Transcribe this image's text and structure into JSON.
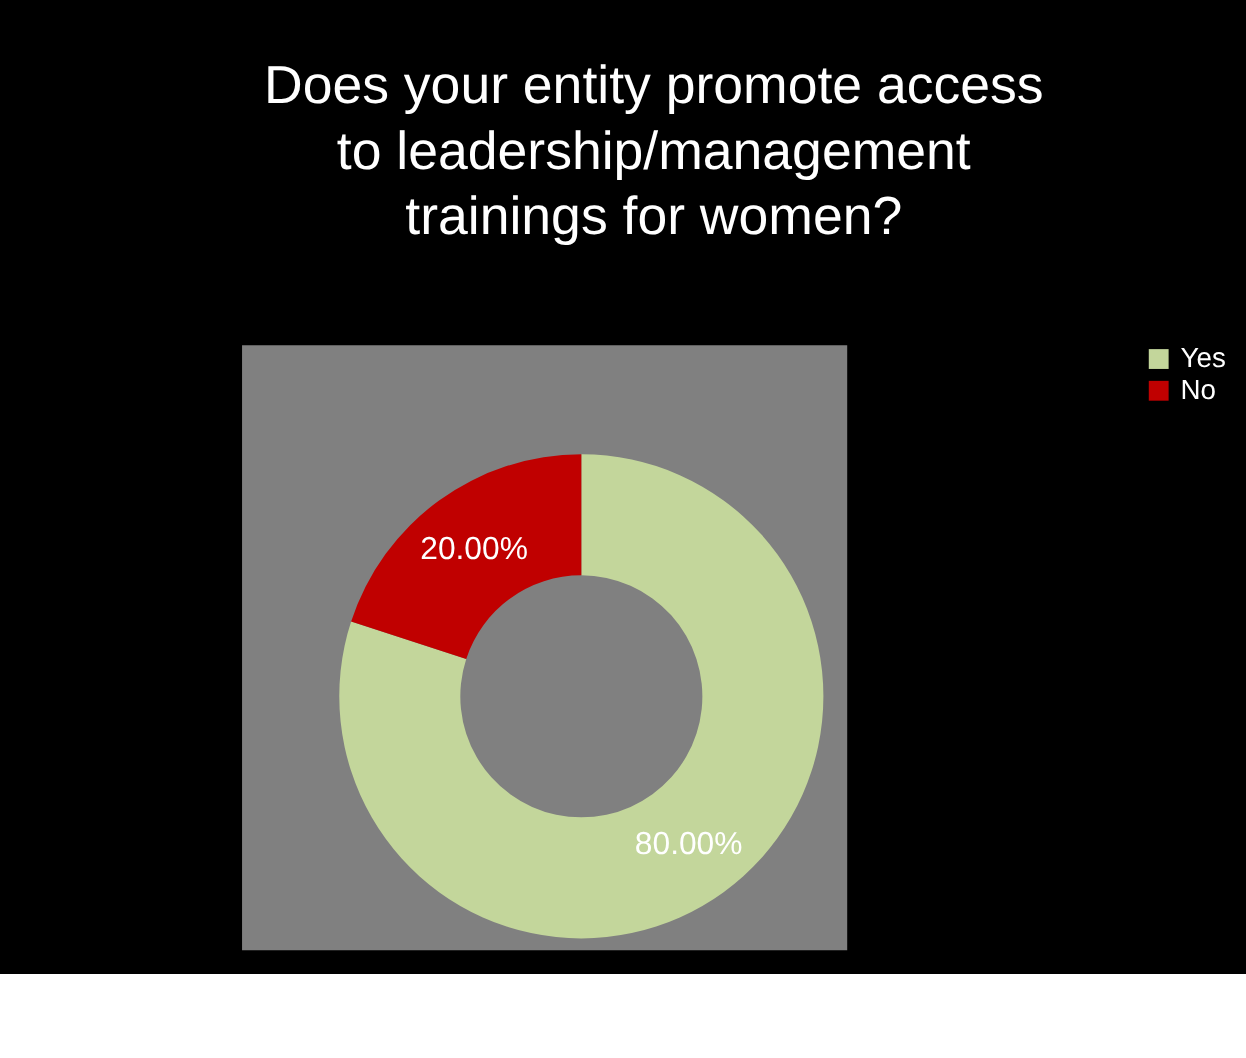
{
  "chart_data": {
    "type": "donut",
    "title": "Does your entity promote access to leadership/management trainings for women?",
    "categories": [
      "Yes",
      "No"
    ],
    "values": [
      80,
      20
    ],
    "colors": [
      "#c3d69b",
      "#c00000"
    ],
    "value_labels": [
      "80.00%",
      "20.00%"
    ],
    "legend": "right"
  }
}
